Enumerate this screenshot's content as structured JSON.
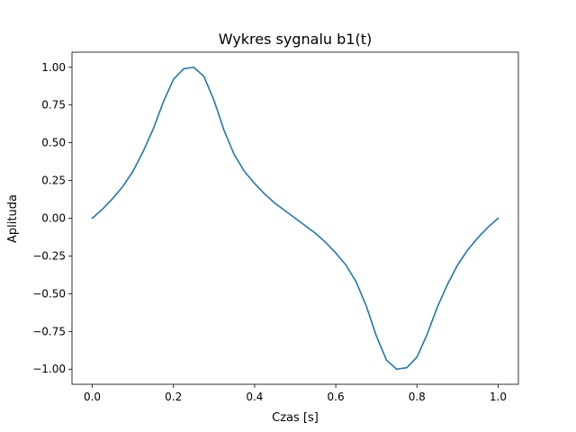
{
  "chart_data": {
    "type": "line",
    "title": "Wykres sygnalu b1(t)",
    "xlabel": "Czas [s]",
    "ylabel": "Aplituda",
    "xlim": [
      -0.05,
      1.05
    ],
    "ylim": [
      -1.1,
      1.1
    ],
    "xticks": [
      0.0,
      0.2,
      0.4,
      0.6,
      0.8,
      1.0
    ],
    "xtick_labels": [
      "0.0",
      "0.2",
      "0.4",
      "0.6",
      "0.8",
      "1.0"
    ],
    "yticks": [
      -1.0,
      -0.75,
      -0.5,
      -0.25,
      0.0,
      0.25,
      0.5,
      0.75,
      1.0
    ],
    "ytick_labels": [
      "−1.00",
      "−0.75",
      "−0.50",
      "−0.25",
      "0.00",
      "0.25",
      "0.50",
      "0.75",
      "1.00"
    ],
    "grid": false,
    "series": [
      {
        "color": "#1f77b4",
        "x": [
          0.0,
          0.025,
          0.05,
          0.075,
          0.1,
          0.125,
          0.15,
          0.175,
          0.2,
          0.225,
          0.25,
          0.275,
          0.3,
          0.325,
          0.35,
          0.375,
          0.4,
          0.425,
          0.45,
          0.475,
          0.5,
          0.525,
          0.55,
          0.575,
          0.6,
          0.625,
          0.65,
          0.675,
          0.7,
          0.725,
          0.75,
          0.775,
          0.8,
          0.825,
          0.85,
          0.875,
          0.9,
          0.925,
          0.95,
          0.975,
          1.0
        ],
        "y": [
          0.0,
          0.06,
          0.13,
          0.21,
          0.31,
          0.44,
          0.59,
          0.77,
          0.92,
          0.99,
          1.0,
          0.94,
          0.78,
          0.58,
          0.42,
          0.31,
          0.23,
          0.16,
          0.1,
          0.05,
          0.0,
          -0.05,
          -0.1,
          -0.16,
          -0.23,
          -0.31,
          -0.42,
          -0.58,
          -0.78,
          -0.94,
          -1.0,
          -0.99,
          -0.92,
          -0.77,
          -0.59,
          -0.44,
          -0.31,
          -0.21,
          -0.13,
          -0.06,
          0.0
        ]
      }
    ]
  }
}
